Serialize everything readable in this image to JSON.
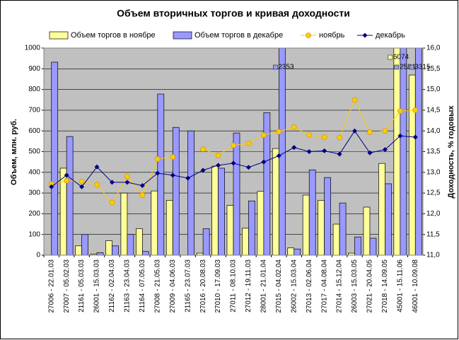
{
  "chart_data": {
    "type": "bar_line",
    "title": "Объем вторичных торгов и кривая доходности",
    "ylabel": "Объем, млн. руб.",
    "y2label": "Доходность, % годовых",
    "categories": [
      "27006 - 22.01.03",
      "27007 - 05.02.03",
      "21161 - 05.03.03",
      "26001 - 15.03.03",
      "21162 - 02.04.03",
      "21163 - 23.04.03",
      "21164 - 07.05.03",
      "27008 - 21.05.03",
      "27009 - 04.06.03",
      "21165 - 23.07.03",
      "27016 - 20.08.03",
      "27010 - 17.09.03",
      "27011 - 08.10.03",
      "27012 - 19.11.03",
      "28001 - 21.01.04",
      "27015 - 04.02.04",
      "26002 - 15.03.04",
      "27013 - 02.06.04",
      "27017 - 04.08.04",
      "27014 - 15.12.04",
      "26003 - 15.03.05",
      "27021 - 20.04.05",
      "27018 - 14.09.05",
      "45001 - 15.11.06",
      "46001 - 10.09.08"
    ],
    "series": [
      {
        "name": "Объем торгов в ноябре",
        "kind": "bar",
        "color": "#ffff99",
        "values": [
          0,
          420,
          45,
          5,
          70,
          300,
          128,
          310,
          265,
          0,
          10,
          430,
          240,
          130,
          308,
          515,
          35,
          290,
          265,
          150,
          10,
          232,
          443,
          6074,
          870
        ],
        "value_labels": [
          null,
          null,
          null,
          null,
          null,
          null,
          null,
          null,
          null,
          null,
          null,
          null,
          null,
          null,
          null,
          null,
          null,
          null,
          null,
          null,
          null,
          null,
          null,
          "6074",
          null
        ]
      },
      {
        "name": "Объем торгов в декабре",
        "kind": "bar",
        "color": "#9999ff",
        "values": [
          932,
          573,
          100,
          12,
          45,
          100,
          18,
          778,
          617,
          600,
          128,
          420,
          590,
          262,
          688,
          2353,
          30,
          412,
          375,
          252,
          88,
          82,
          345,
          2584,
          3315
        ],
        "value_labels": [
          null,
          null,
          null,
          null,
          null,
          null,
          null,
          null,
          null,
          null,
          null,
          null,
          null,
          null,
          null,
          "2353",
          null,
          null,
          null,
          null,
          null,
          null,
          null,
          "2584",
          "3315"
        ]
      },
      {
        "name": "ноябрь",
        "kind": "line",
        "axis": "y2",
        "color": "#ffcc00",
        "marker": "circle",
        "values": [
          12.72,
          12.8,
          12.78,
          12.7,
          12.27,
          12.9,
          12.45,
          13.32,
          13.37,
          null,
          13.56,
          13.41,
          13.65,
          13.7,
          13.9,
          13.98,
          14.09,
          13.9,
          13.85,
          13.84,
          14.75,
          13.97,
          14.0,
          14.48,
          14.5
        ]
      },
      {
        "name": "декабрь",
        "kind": "line",
        "axis": "y2",
        "color": "#000080",
        "marker": "diamond",
        "values": [
          12.65,
          12.93,
          12.65,
          13.13,
          12.76,
          12.76,
          12.68,
          12.98,
          12.93,
          12.86,
          13.05,
          13.17,
          13.22,
          13.12,
          13.25,
          13.4,
          13.6,
          13.5,
          13.52,
          13.44,
          14.0,
          13.47,
          13.55,
          13.88,
          13.85
        ]
      }
    ],
    "ylim": [
      0,
      1000
    ],
    "yticks": [
      0,
      100,
      200,
      300,
      400,
      500,
      600,
      700,
      800,
      900,
      1000
    ],
    "y2lim": [
      11,
      16
    ],
    "y2ticks": [
      {
        "value": 11,
        "label": "11,0"
      },
      {
        "value": 11.5,
        "label": "11,5"
      },
      {
        "value": 12,
        "label": "12,0"
      },
      {
        "value": 12.5,
        "label": "12,5"
      },
      {
        "value": 13,
        "label": "13,0"
      },
      {
        "value": 13.5,
        "label": "13,5"
      },
      {
        "value": 14,
        "label": "14,0"
      },
      {
        "value": 14.5,
        "label": "14,5"
      },
      {
        "value": 15,
        "label": "15,0"
      },
      {
        "value": 15.5,
        "label": "15,5"
      },
      {
        "value": 16,
        "label": "16,0"
      }
    ],
    "grid": true,
    "legend": "top"
  }
}
